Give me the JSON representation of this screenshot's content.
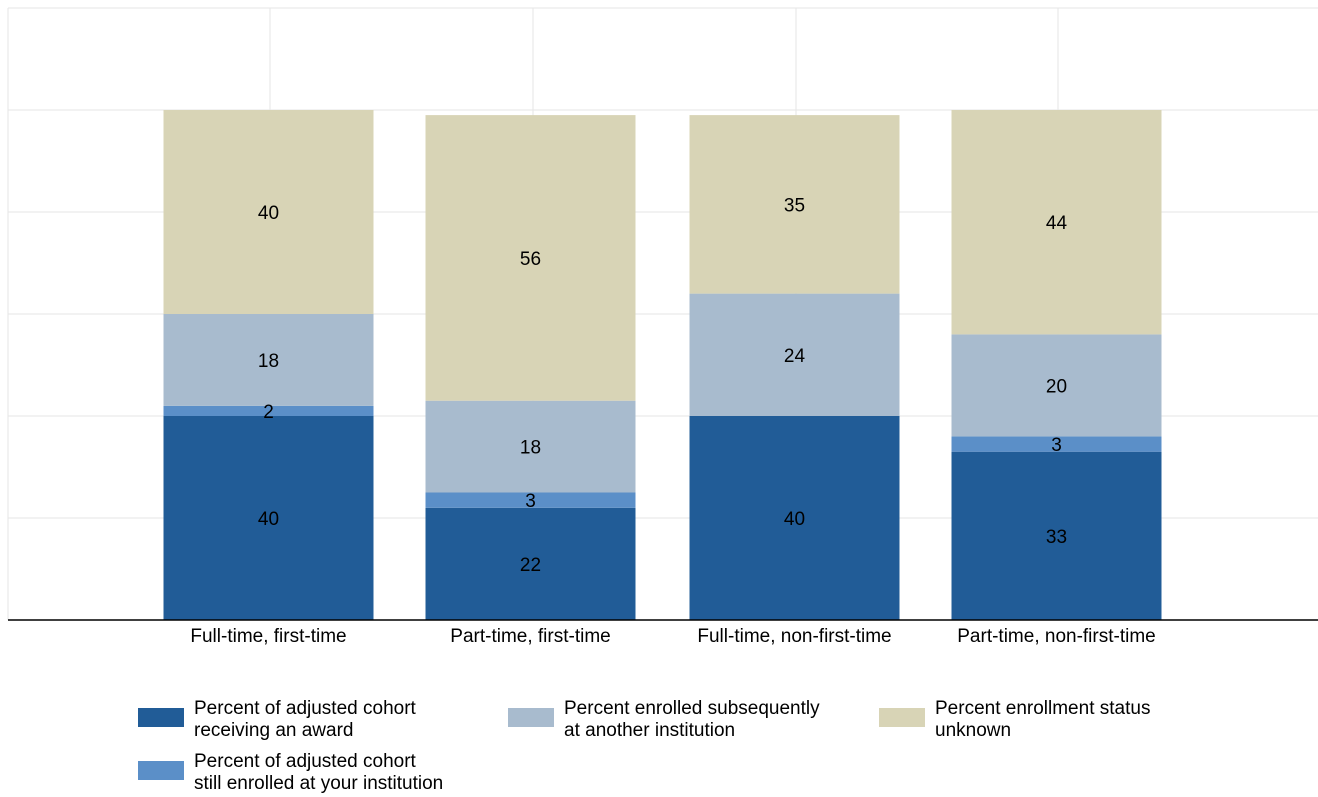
{
  "chart_data": {
    "type": "bar",
    "stacked": true,
    "categories": [
      "Full-time, first-time",
      "Part-time, first-time",
      "Full-time, non-first-time",
      "Part-time, non-first-time"
    ],
    "series": [
      {
        "name": "Percent of adjusted cohort receiving an award",
        "color": "#215c97",
        "values": [
          40,
          22,
          40,
          33
        ]
      },
      {
        "name": "Percent of adjusted cohort still enrolled at your institution",
        "color": "#5b8fc8",
        "values": [
          2,
          3,
          0,
          3
        ]
      },
      {
        "name": "Percent enrolled subsequently at another institution",
        "color": "#a8bbce",
        "values": [
          18,
          18,
          24,
          20
        ]
      },
      {
        "name": "Percent enrollment status unknown",
        "color": "#d8d4b6",
        "values": [
          40,
          56,
          35,
          44
        ]
      }
    ],
    "data_labels": [
      [
        "40",
        "22",
        "40",
        "33"
      ],
      [
        "2",
        "3",
        "",
        "3"
      ],
      [
        "18",
        "18",
        "24",
        "20"
      ],
      [
        "40",
        "56",
        "35",
        "44"
      ]
    ],
    "ylim": [
      0,
      120
    ],
    "grid": true,
    "legend_position": "bottom",
    "title": "",
    "xlabel": "",
    "ylabel": ""
  },
  "legend": {
    "items": [
      {
        "label_line1": "Percent of adjusted cohort",
        "label_line2": "receiving an award",
        "color": "#215c97"
      },
      {
        "label_line1": "Percent enrolled subsequently",
        "label_line2": "at another institution",
        "color": "#a8bbce"
      },
      {
        "label_line1": "Percent enrollment status",
        "label_line2": "unknown",
        "color": "#d8d4b6"
      },
      {
        "label_line1": "Percent of adjusted cohort",
        "label_line2": "still enrolled at your institution",
        "color": "#5b8fc8"
      }
    ]
  }
}
